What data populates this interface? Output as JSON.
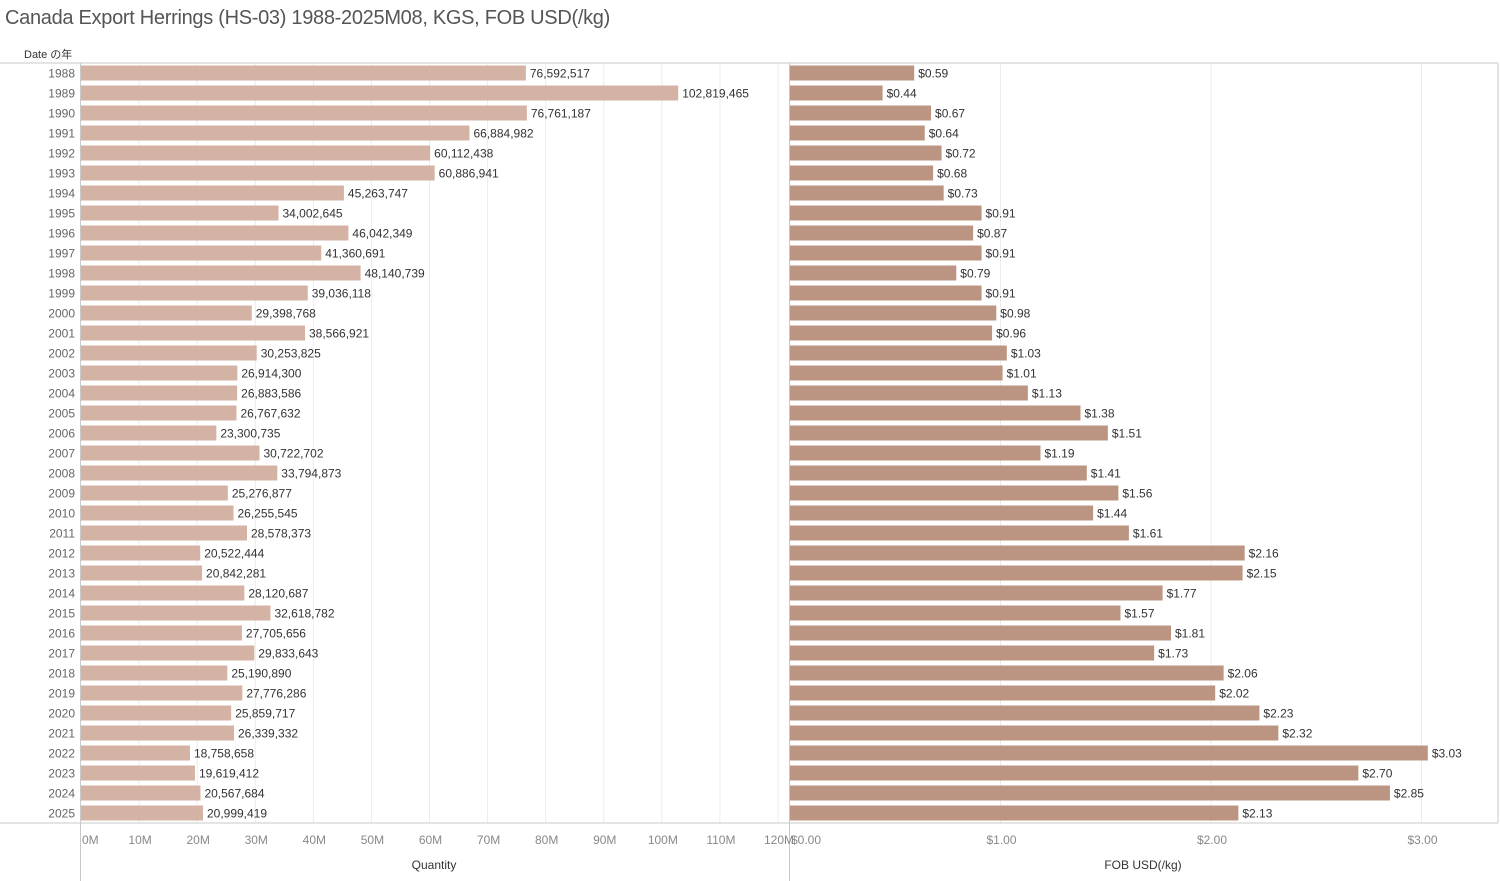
{
  "chart_data": {
    "type": "bar",
    "orientation": "horizontal",
    "title": "Canada Export Herrings (HS-03) 1988-2025M08, KGS, FOB USD(/kg)",
    "row_header": "Date の年",
    "categories": [
      "1988",
      "1989",
      "1990",
      "1991",
      "1992",
      "1993",
      "1994",
      "1995",
      "1996",
      "1997",
      "1998",
      "1999",
      "2000",
      "2001",
      "2002",
      "2003",
      "2004",
      "2005",
      "2006",
      "2007",
      "2008",
      "2009",
      "2010",
      "2011",
      "2012",
      "2013",
      "2014",
      "2015",
      "2016",
      "2017",
      "2018",
      "2019",
      "2020",
      "2021",
      "2022",
      "2023",
      "2024",
      "2025"
    ],
    "panels": [
      {
        "name": "Quantity",
        "xlabel": "Quantity",
        "xlim": [
          0,
          120000000
        ],
        "ticks": [
          0,
          10000000,
          20000000,
          30000000,
          40000000,
          50000000,
          60000000,
          70000000,
          80000000,
          90000000,
          100000000,
          110000000,
          120000000
        ],
        "tick_labels": [
          "0M",
          "10M",
          "20M",
          "30M",
          "40M",
          "50M",
          "60M",
          "70M",
          "80M",
          "90M",
          "100M",
          "110M",
          "120M"
        ],
        "color": "#d4b3a5",
        "values": [
          76592517,
          102819465,
          76761187,
          66884982,
          60112438,
          60886941,
          45263747,
          34002645,
          46042349,
          41360691,
          48140739,
          39036118,
          29398768,
          38566921,
          30253825,
          26914300,
          26883586,
          26767632,
          23300735,
          30722702,
          33794873,
          25276877,
          26255545,
          28578373,
          20522444,
          20842281,
          28120687,
          32618782,
          27705656,
          29833643,
          25190890,
          27776286,
          25859717,
          26339332,
          18758658,
          19619412,
          20567684,
          20999419
        ],
        "value_labels": [
          "76,592,517",
          "102,819,465",
          "76,761,187",
          "66,884,982",
          "60,112,438",
          "60,886,941",
          "45,263,747",
          "34,002,645",
          "46,042,349",
          "41,360,691",
          "48,140,739",
          "39,036,118",
          "29,398,768",
          "38,566,921",
          "30,253,825",
          "26,914,300",
          "26,883,586",
          "26,767,632",
          "23,300,735",
          "30,722,702",
          "33,794,873",
          "25,276,877",
          "26,255,545",
          "28,578,373",
          "20,522,444",
          "20,842,281",
          "28,120,687",
          "32,618,782",
          "27,705,656",
          "29,833,643",
          "25,190,890",
          "27,776,286",
          "25,859,717",
          "26,339,332",
          "18,758,658",
          "19,619,412",
          "20,567,684",
          "20,999,419"
        ]
      },
      {
        "name": "FOB USD(/kg)",
        "xlabel": "FOB USD(/kg)",
        "xlim": [
          0,
          3.37
        ],
        "ticks": [
          0,
          1,
          2,
          3
        ],
        "tick_labels": [
          "$0.00",
          "$1.00",
          "$2.00",
          "$3.00"
        ],
        "color": "#bb9582",
        "values": [
          0.59,
          0.44,
          0.67,
          0.64,
          0.72,
          0.68,
          0.73,
          0.91,
          0.87,
          0.91,
          0.79,
          0.91,
          0.98,
          0.96,
          1.03,
          1.01,
          1.13,
          1.38,
          1.51,
          1.19,
          1.41,
          1.56,
          1.44,
          1.61,
          2.16,
          2.15,
          1.77,
          1.57,
          1.81,
          1.73,
          2.06,
          2.02,
          2.23,
          2.32,
          3.03,
          2.7,
          2.85,
          2.13
        ],
        "value_labels": [
          "$0.59",
          "$0.44",
          "$0.67",
          "$0.64",
          "$0.72",
          "$0.68",
          "$0.73",
          "$0.91",
          "$0.87",
          "$0.91",
          "$0.79",
          "$0.91",
          "$0.98",
          "$0.96",
          "$1.03",
          "$1.01",
          "$1.13",
          "$1.38",
          "$1.51",
          "$1.19",
          "$1.41",
          "$1.56",
          "$1.44",
          "$1.61",
          "$2.16",
          "$2.15",
          "$1.77",
          "$1.57",
          "$1.81",
          "$1.73",
          "$2.06",
          "$2.02",
          "$2.23",
          "$2.32",
          "$3.03",
          "$2.70",
          "$2.85",
          "$2.13"
        ]
      }
    ],
    "grid": true,
    "legend": "none"
  }
}
